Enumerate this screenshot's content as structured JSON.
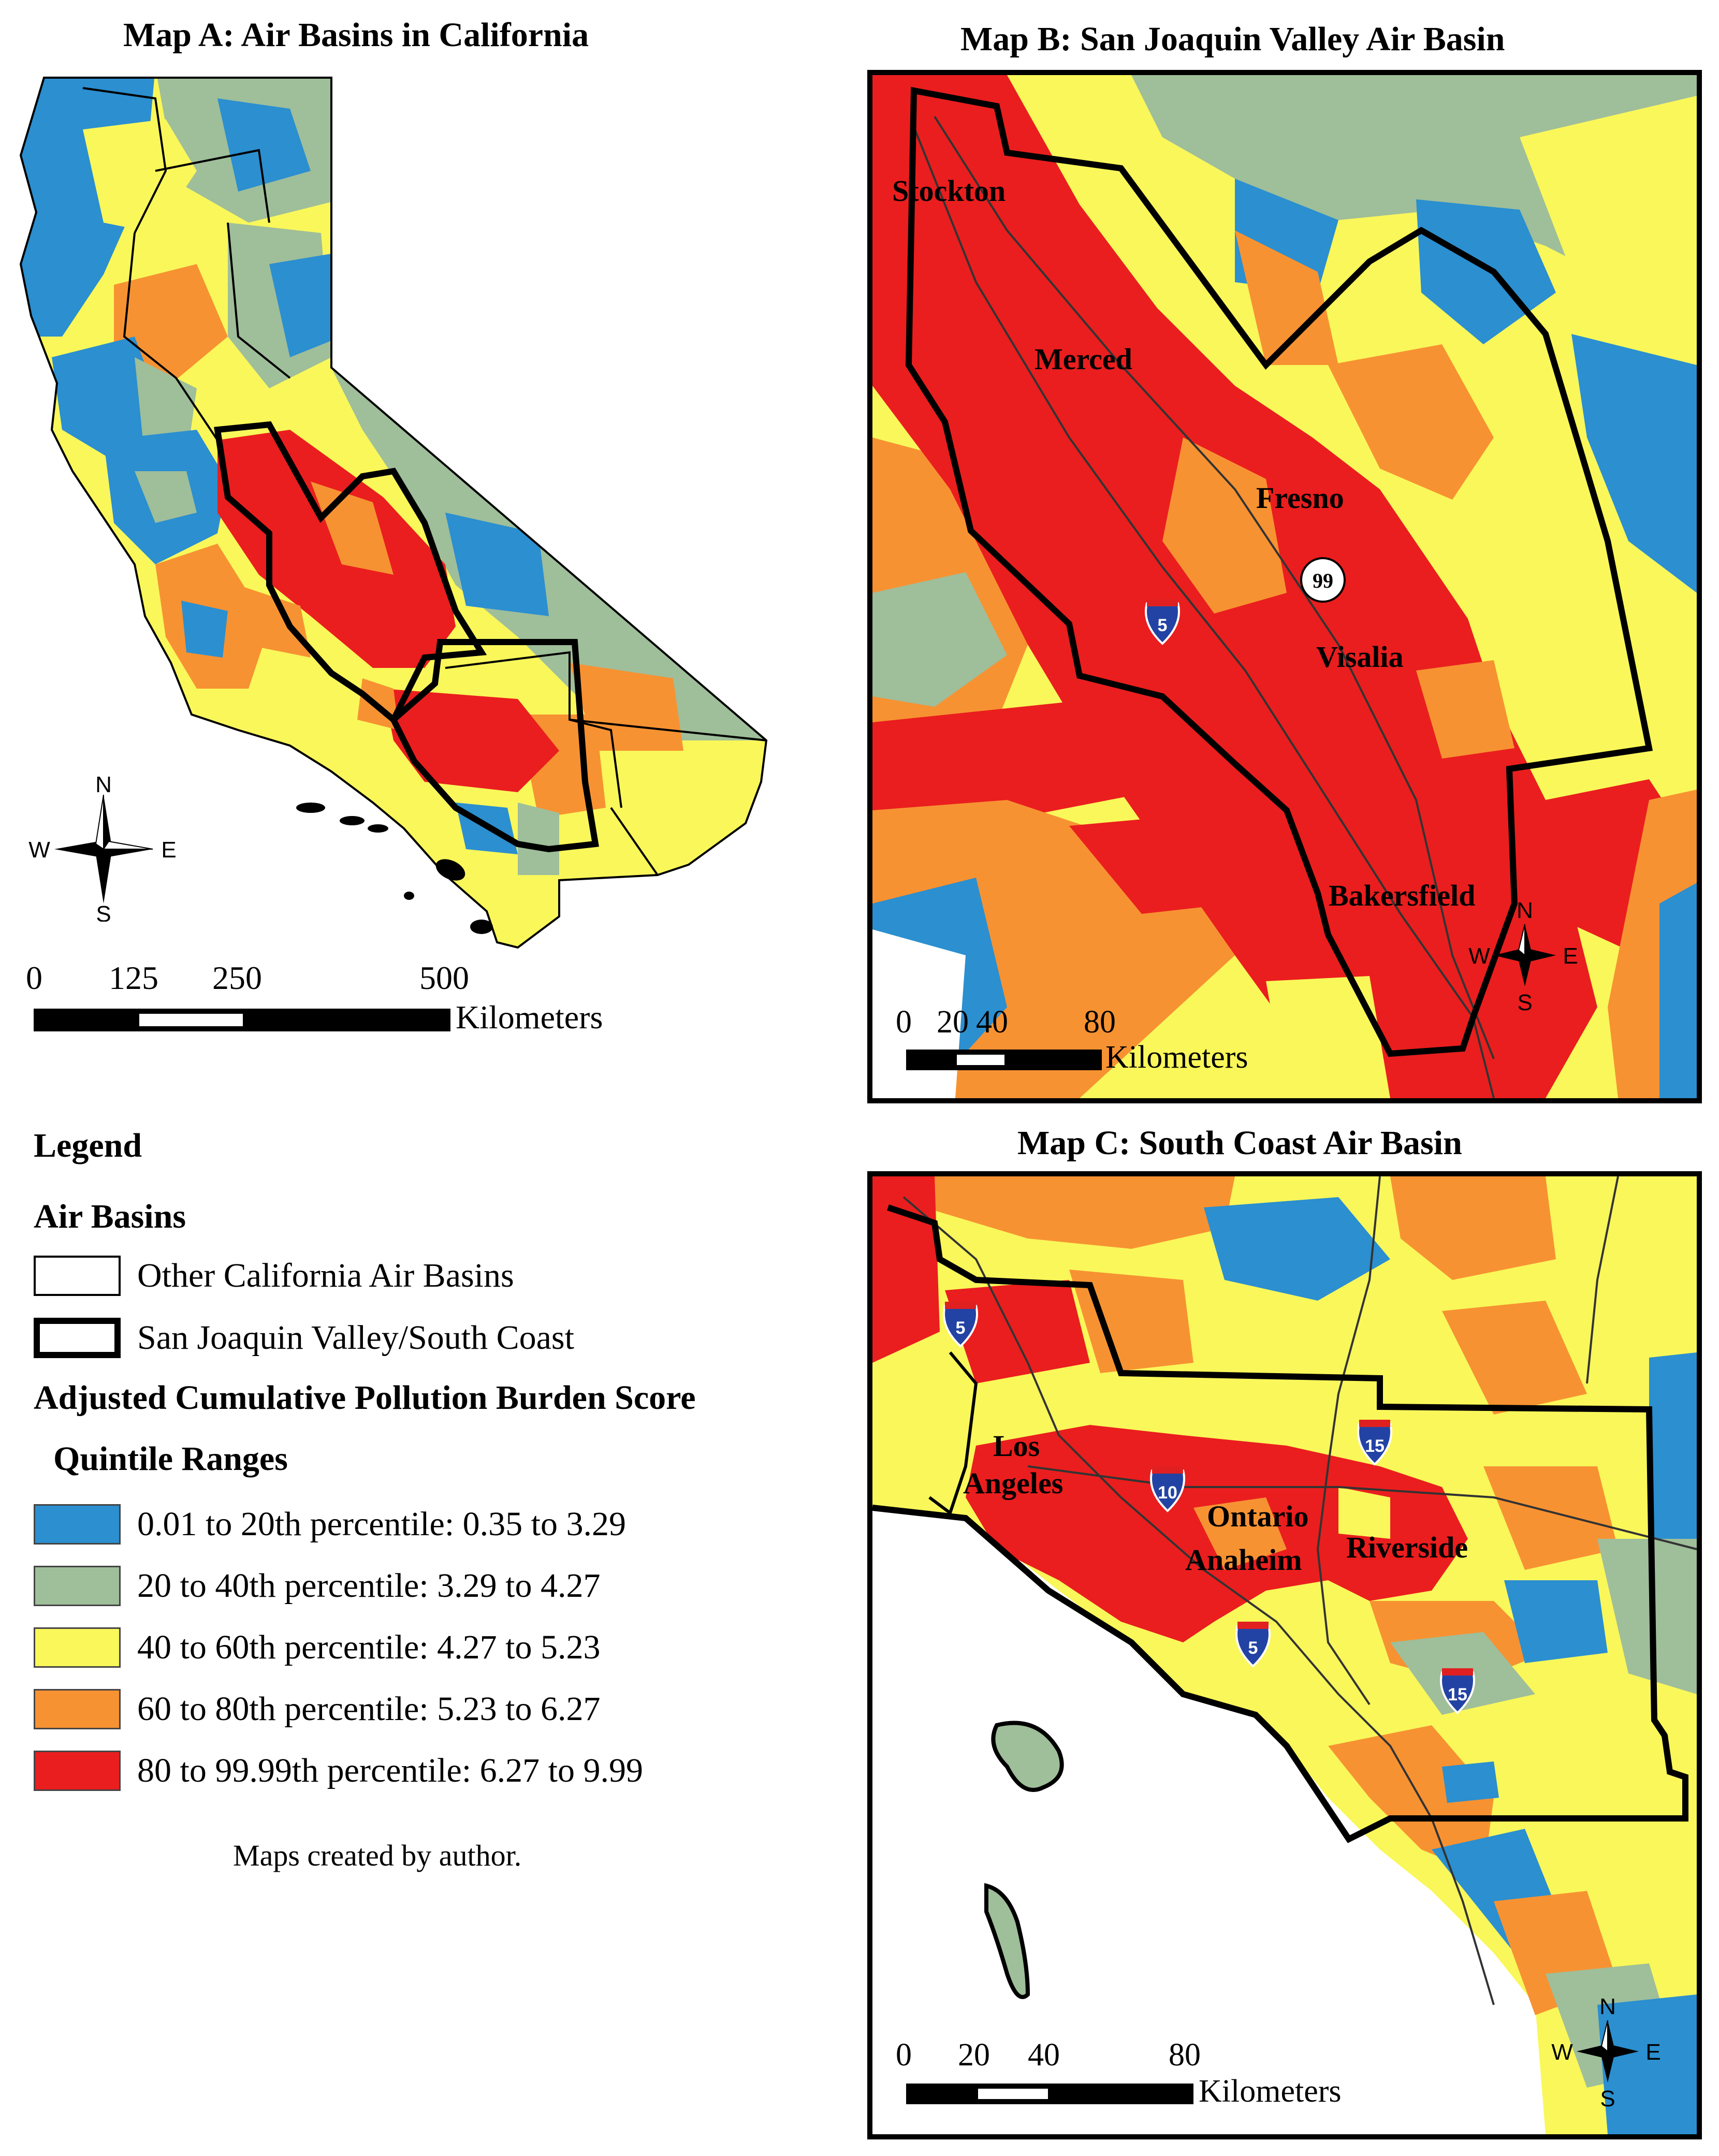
{
  "titles": {
    "map_a": "Map A: Air Basins in California",
    "map_b": "Map B: San Joaquin Valley Air Basin",
    "map_c": "Map C: South Coast Air Basin"
  },
  "map_a": {
    "scale": {
      "ticks": [
        "0",
        "125",
        "250",
        "500"
      ],
      "unit": "Kilometers"
    },
    "compass": {
      "n": "N",
      "s": "S",
      "e": "E",
      "w": "W"
    }
  },
  "map_b": {
    "cities": {
      "stockton": "Stockton",
      "merced": "Merced",
      "fresno": "Fresno",
      "visalia": "Visalia",
      "bakersfield": "Bakersfield"
    },
    "routes": {
      "i5": "5",
      "sr99": "99"
    },
    "scale": {
      "ticks": [
        "0",
        "20",
        "40",
        "80"
      ],
      "unit": "Kilometers"
    },
    "compass": {
      "n": "N",
      "s": "S",
      "e": "E",
      "w": "W"
    }
  },
  "map_c": {
    "cities": {
      "los": "Los",
      "angeles": "Angeles",
      "ontario": "Ontario",
      "anaheim": "Anaheim",
      "riverside": "Riverside"
    },
    "routes": {
      "i5a": "5",
      "i15a": "15",
      "i10": "10",
      "i5b": "5",
      "i15b": "15"
    },
    "scale": {
      "ticks": [
        "0",
        "20",
        "40",
        "80"
      ],
      "unit": "Kilometers"
    },
    "compass": {
      "n": "N",
      "s": "S",
      "e": "E",
      "w": "W"
    }
  },
  "legend": {
    "title": "Legend",
    "air_basins_heading": "Air Basins",
    "other_basins": "Other California Air Basins",
    "sjv_sc": "San Joaquin Valley/South Coast",
    "score_heading": "Adjusted Cumulative Pollution Burden Score",
    "quintile_heading": "Quintile Ranges",
    "classes": [
      {
        "label": "0.01 to 20th percentile: 0.35 to 3.29",
        "color": "#2b8fd0"
      },
      {
        "label": "20 to 40th percentile: 3.29 to 4.27",
        "color": "#9fbe9a"
      },
      {
        "label": "40 to 60th percentile: 4.27 to 5.23",
        "color": "#f9f75a"
      },
      {
        "label": "60 to 80th percentile: 5.23 to 6.27",
        "color": "#f79232"
      },
      {
        "label": "80 to 99.99th percentile: 6.27 to 9.99",
        "color": "#ea1e1e"
      }
    ]
  },
  "credit": "Maps created by author."
}
